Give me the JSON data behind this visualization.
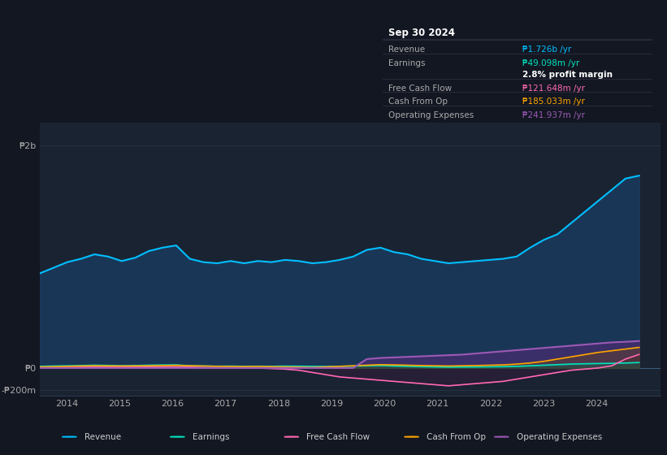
{
  "bg_color": "#131722",
  "plot_bg_color": "#1a2332",
  "grid_color": "#2a3a4a",
  "title": "Sep 30 2024",
  "info_box": {
    "Revenue": {
      "value": "₱1.726b /yr",
      "color": "#00bfff"
    },
    "Earnings": {
      "value": "₱49.098m /yr",
      "color": "#00e5c0"
    },
    "profit_margin": {
      "value": "2.8% profit margin",
      "color": "#ffffff"
    },
    "Free Cash Flow": {
      "value": "₱121.648m /yr",
      "color": "#ff69b4"
    },
    "Cash From Op": {
      "value": "₱185.033m /yr",
      "color": "#ffa500"
    },
    "Operating Expenses": {
      "value": "₱241.937m /yr",
      "color": "#9b59b6"
    }
  },
  "ylim": [
    -250000000,
    2200000000
  ],
  "yticks": [
    -200000000,
    0,
    2000000000
  ],
  "ytick_labels": [
    "-₱200m",
    "₱0",
    "₱2b"
  ],
  "xticks": [
    2014,
    2015,
    2016,
    2017,
    2018,
    2019,
    2020,
    2021,
    2022,
    2023,
    2024
  ],
  "legend": [
    {
      "label": "Revenue",
      "color": "#00bfff"
    },
    {
      "label": "Earnings",
      "color": "#00e5c0"
    },
    {
      "label": "Free Cash Flow",
      "color": "#ff69b4"
    },
    {
      "label": "Cash From Op",
      "color": "#ffa500"
    },
    {
      "label": "Operating Expenses",
      "color": "#9b59b6"
    }
  ],
  "revenue": [
    850000000,
    900000000,
    950000000,
    980000000,
    1020000000,
    1000000000,
    960000000,
    990000000,
    1050000000,
    1080000000,
    1100000000,
    980000000,
    950000000,
    940000000,
    960000000,
    940000000,
    960000000,
    950000000,
    970000000,
    960000000,
    940000000,
    950000000,
    970000000,
    1000000000,
    1060000000,
    1080000000,
    1040000000,
    1020000000,
    980000000,
    960000000,
    940000000,
    950000000,
    960000000,
    970000000,
    980000000,
    1000000000,
    1080000000,
    1150000000,
    1200000000,
    1300000000,
    1400000000,
    1500000000,
    1600000000,
    1700000000,
    1726000000
  ],
  "earnings": [
    15000000,
    18000000,
    20000000,
    22000000,
    25000000,
    23000000,
    20000000,
    22000000,
    25000000,
    27000000,
    28000000,
    20000000,
    18000000,
    16000000,
    17000000,
    15000000,
    16000000,
    15000000,
    17000000,
    16000000,
    15000000,
    14000000,
    15000000,
    17000000,
    20000000,
    22000000,
    18000000,
    15000000,
    12000000,
    10000000,
    8000000,
    9000000,
    10000000,
    11000000,
    12000000,
    15000000,
    20000000,
    25000000,
    30000000,
    35000000,
    38000000,
    40000000,
    42000000,
    45000000,
    49098000
  ],
  "free_cash_flow": [
    5000000,
    6000000,
    7000000,
    8000000,
    10000000,
    9000000,
    8000000,
    9000000,
    10000000,
    11000000,
    12000000,
    8000000,
    5000000,
    3000000,
    2000000,
    1000000,
    0,
    -5000000,
    -10000000,
    -20000000,
    -40000000,
    -60000000,
    -80000000,
    -90000000,
    -100000000,
    -110000000,
    -120000000,
    -130000000,
    -140000000,
    -150000000,
    -160000000,
    -150000000,
    -140000000,
    -130000000,
    -120000000,
    -100000000,
    -80000000,
    -60000000,
    -40000000,
    -20000000,
    -10000000,
    0,
    20000000,
    80000000,
    121648000
  ],
  "cash_from_op": [
    10000000,
    12000000,
    15000000,
    18000000,
    20000000,
    19000000,
    18000000,
    19000000,
    20000000,
    22000000,
    24000000,
    20000000,
    18000000,
    15000000,
    14000000,
    13000000,
    14000000,
    12000000,
    10000000,
    8000000,
    5000000,
    10000000,
    15000000,
    20000000,
    25000000,
    30000000,
    28000000,
    25000000,
    22000000,
    20000000,
    18000000,
    20000000,
    22000000,
    25000000,
    28000000,
    35000000,
    45000000,
    60000000,
    80000000,
    100000000,
    120000000,
    140000000,
    155000000,
    170000000,
    185033000
  ],
  "operating_expenses": [
    0,
    0,
    0,
    0,
    0,
    0,
    0,
    0,
    0,
    0,
    0,
    0,
    0,
    0,
    0,
    0,
    0,
    0,
    0,
    0,
    0,
    0,
    0,
    0,
    80000000,
    90000000,
    95000000,
    100000000,
    105000000,
    110000000,
    115000000,
    120000000,
    130000000,
    140000000,
    150000000,
    160000000,
    170000000,
    180000000,
    190000000,
    200000000,
    210000000,
    220000000,
    230000000,
    235000000,
    241937000
  ]
}
